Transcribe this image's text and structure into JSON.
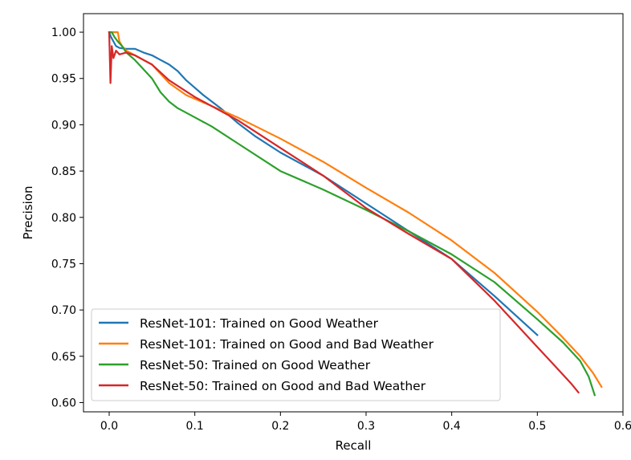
{
  "chart_data": {
    "type": "line",
    "title": "",
    "xlabel": "Recall",
    "ylabel": "Precision",
    "xlim": [
      -0.03,
      0.6
    ],
    "ylim": [
      0.59,
      1.02
    ],
    "xticks": [
      0.0,
      0.1,
      0.2,
      0.3,
      0.4,
      0.5,
      0.6
    ],
    "xtick_labels": [
      "0.0",
      "0.1",
      "0.2",
      "0.3",
      "0.4",
      "0.5",
      "0.6"
    ],
    "yticks": [
      0.6,
      0.65,
      0.7,
      0.75,
      0.8,
      0.85,
      0.9,
      0.95,
      1.0
    ],
    "ytick_labels": [
      "0.60",
      "0.65",
      "0.70",
      "0.75",
      "0.80",
      "0.85",
      "0.90",
      "0.95",
      "1.00"
    ],
    "grid": false,
    "legend_position": "lower-left",
    "series": [
      {
        "name": "ResNet-101: Trained on Good Weather",
        "color": "#1f77b4",
        "x": [
          0.0,
          0.002,
          0.005,
          0.008,
          0.012,
          0.02,
          0.03,
          0.04,
          0.05,
          0.06,
          0.07,
          0.08,
          0.09,
          0.1,
          0.11,
          0.12,
          0.13,
          0.15,
          0.17,
          0.2,
          0.25,
          0.3,
          0.35,
          0.4,
          0.45,
          0.5
        ],
        "y": [
          1.0,
          0.995,
          0.99,
          0.985,
          0.983,
          0.982,
          0.982,
          0.978,
          0.975,
          0.97,
          0.965,
          0.958,
          0.948,
          0.94,
          0.932,
          0.925,
          0.918,
          0.902,
          0.888,
          0.87,
          0.845,
          0.815,
          0.785,
          0.755,
          0.715,
          0.673
        ]
      },
      {
        "name": "ResNet-101: Trained on Good and Bad Weather",
        "color": "#ff7f0e",
        "x": [
          0.0,
          0.003,
          0.006,
          0.01,
          0.012,
          0.015,
          0.02,
          0.03,
          0.05,
          0.07,
          0.09,
          0.1,
          0.12,
          0.15,
          0.2,
          0.25,
          0.3,
          0.35,
          0.4,
          0.45,
          0.5,
          0.53,
          0.55,
          0.565,
          0.575
        ],
        "y": [
          1.0,
          1.0,
          1.0,
          1.0,
          0.99,
          0.985,
          0.98,
          0.975,
          0.965,
          0.945,
          0.932,
          0.928,
          0.92,
          0.908,
          0.885,
          0.86,
          0.832,
          0.805,
          0.775,
          0.74,
          0.698,
          0.67,
          0.65,
          0.632,
          0.617
        ]
      },
      {
        "name": "ResNet-50: Trained on Good Weather",
        "color": "#2ca02c",
        "x": [
          0.0,
          0.003,
          0.006,
          0.01,
          0.015,
          0.02,
          0.03,
          0.04,
          0.05,
          0.06,
          0.07,
          0.08,
          0.1,
          0.12,
          0.15,
          0.2,
          0.25,
          0.3,
          0.35,
          0.4,
          0.45,
          0.5,
          0.53,
          0.55,
          0.56,
          0.567
        ],
        "y": [
          1.0,
          1.0,
          0.995,
          0.99,
          0.985,
          0.978,
          0.97,
          0.96,
          0.95,
          0.935,
          0.925,
          0.918,
          0.908,
          0.898,
          0.88,
          0.85,
          0.83,
          0.808,
          0.785,
          0.76,
          0.73,
          0.69,
          0.665,
          0.645,
          0.628,
          0.608
        ]
      },
      {
        "name": "ResNet-50: Trained on Good and Bad Weather",
        "color": "#d62728",
        "x": [
          0.0,
          0.0015,
          0.003,
          0.005,
          0.008,
          0.012,
          0.02,
          0.03,
          0.04,
          0.05,
          0.07,
          0.1,
          0.15,
          0.2,
          0.25,
          0.3,
          0.35,
          0.4,
          0.45,
          0.5,
          0.52,
          0.54,
          0.548
        ],
        "y": [
          1.0,
          0.945,
          0.985,
          0.972,
          0.98,
          0.976,
          0.978,
          0.975,
          0.97,
          0.965,
          0.948,
          0.93,
          0.905,
          0.875,
          0.845,
          0.81,
          0.782,
          0.755,
          0.71,
          0.66,
          0.64,
          0.62,
          0.611
        ]
      }
    ]
  }
}
